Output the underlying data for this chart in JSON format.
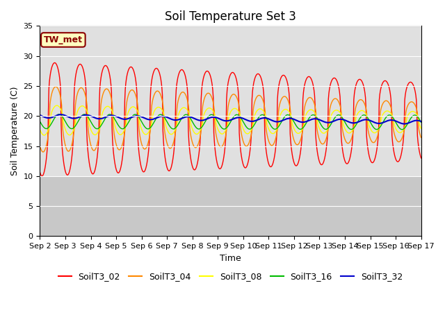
{
  "title": "Soil Temperature Set 3",
  "xlabel": "Time",
  "ylabel": "Soil Temperature (C)",
  "ylim": [
    0,
    35
  ],
  "annotation": "TW_met",
  "series_names": [
    "SoilT3_02",
    "SoilT3_04",
    "SoilT3_08",
    "SoilT3_16",
    "SoilT3_32"
  ],
  "series_colors": [
    "#FF0000",
    "#FF8800",
    "#FFFF00",
    "#00BB00",
    "#0000CC"
  ],
  "series_lw": [
    1.0,
    1.0,
    1.0,
    1.0,
    1.5
  ],
  "xtick_labels": [
    "Sep 2",
    "Sep 3",
    "Sep 4",
    "Sep 5",
    "Sep 6",
    "Sep 7",
    "Sep 8",
    "Sep 9",
    "Sep 10",
    "Sep 11",
    "Sep 12",
    "Sep 13",
    "Sep 14",
    "Sep 15",
    "Sep 16",
    "Sep 17"
  ],
  "yticks": [
    0,
    5,
    10,
    15,
    20,
    25,
    30,
    35
  ],
  "plot_bg": "#E0E0E0",
  "band_bg": "#C8C8C8",
  "fig_bg": "#FFFFFF",
  "grid_color": "#FFFFFF",
  "title_fontsize": 12,
  "axis_fontsize": 9,
  "tick_fontsize": 8,
  "legend_fontsize": 9
}
